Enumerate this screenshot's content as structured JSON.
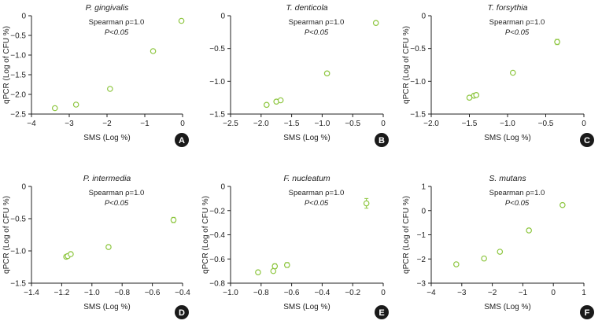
{
  "colors": {
    "point": "#8dc63f",
    "axis": "#222222",
    "badge": "#1a1a1a"
  },
  "chart_data": [
    {
      "type": "scatter",
      "panel": "A",
      "title": "P. gingivalis",
      "xlabel": "SMS (Log %)",
      "ylabel": "qPCR (Log of CFU %)",
      "annotation": [
        "Spearman ρ=1.0",
        "P<0.05"
      ],
      "xlim": [
        -4,
        0
      ],
      "ylim": [
        -2.5,
        0
      ],
      "xticks": [
        -4,
        -3,
        -2,
        -1,
        0
      ],
      "yticks": [
        -2.5,
        -2.0,
        -1.5,
        -1.0,
        -0.5,
        0
      ],
      "xtick_labels": [
        "−4",
        "−3",
        "−2",
        "−1",
        "0"
      ],
      "ytick_labels": [
        "−2.5",
        "−2.0",
        "−1.5",
        "−1.0",
        "−0.5",
        "0"
      ],
      "points": [
        {
          "x": -3.38,
          "y": -2.35
        },
        {
          "x": -2.82,
          "y": -2.26
        },
        {
          "x": -1.92,
          "y": -1.86
        },
        {
          "x": -0.78,
          "y": -0.9
        },
        {
          "x": -0.03,
          "y": -0.13
        }
      ]
    },
    {
      "type": "scatter",
      "panel": "B",
      "title": "T. denticola",
      "xlabel": "SMS (Log %)",
      "ylabel": "",
      "annotation": [
        "Spearman ρ=1.0",
        "P<0.05"
      ],
      "xlim": [
        -2.5,
        0
      ],
      "ylim": [
        -1.5,
        0
      ],
      "xticks": [
        -2.5,
        -2.0,
        -1.5,
        -1.0,
        -0.5,
        0
      ],
      "yticks": [
        -1.5,
        -1.0,
        -0.5,
        0
      ],
      "xtick_labels": [
        "−2.5",
        "−2.0",
        "−1.5",
        "−1.0",
        "−0.5",
        "0"
      ],
      "ytick_labels": [
        "−1.5",
        "−1.0",
        "−0.5",
        "0"
      ],
      "points": [
        {
          "x": -1.91,
          "y": -1.36
        },
        {
          "x": -1.75,
          "y": -1.31
        },
        {
          "x": -1.68,
          "y": -1.29
        },
        {
          "x": -0.92,
          "y": -0.88
        },
        {
          "x": -0.12,
          "y": -0.11
        }
      ]
    },
    {
      "type": "scatter",
      "panel": "C",
      "title": "T. forsythia",
      "xlabel": "SMS (Log %)",
      "ylabel": "qPCR (Log of CFU %)",
      "annotation": [
        "Spearman ρ=1.0",
        "P<0.05"
      ],
      "xlim": [
        -2.0,
        0
      ],
      "ylim": [
        -1.5,
        0
      ],
      "xticks": [
        -2.0,
        -1.5,
        -1.0,
        -0.5,
        0
      ],
      "yticks": [
        -1.5,
        -1.0,
        -0.5,
        0
      ],
      "xtick_labels": [
        "−2.0",
        "−1.5",
        "−1.0",
        "−0.5",
        "0"
      ],
      "ytick_labels": [
        "−1.5",
        "−1.0",
        "−0.5",
        "0"
      ],
      "points": [
        {
          "x": -1.5,
          "y": -1.25
        },
        {
          "x": -1.44,
          "y": -1.22
        },
        {
          "x": -1.41,
          "y": -1.21
        },
        {
          "x": -0.93,
          "y": -0.87
        },
        {
          "x": -0.35,
          "y": -0.4,
          "err": 0.04
        }
      ]
    },
    {
      "type": "scatter",
      "panel": "D",
      "title": "P. intermedia",
      "xlabel": "SMS (Log %)",
      "ylabel": "qPCR (Log of CFU %)",
      "annotation": [
        "Spearman ρ=1.0",
        "P<0.05"
      ],
      "xlim": [
        -1.4,
        -0.4
      ],
      "ylim": [
        -1.5,
        0
      ],
      "xticks": [
        -1.4,
        -1.2,
        -1.0,
        -0.8,
        -0.6,
        -0.4
      ],
      "yticks": [
        -1.5,
        -1.0,
        -0.5,
        0
      ],
      "xtick_labels": [
        "−1.4",
        "−1.2",
        "−1.0",
        "−0.8",
        "−0.6",
        "−0.4"
      ],
      "ytick_labels": [
        "−1.5",
        "−1.0",
        "−0.5",
        "0"
      ],
      "points": [
        {
          "x": -1.17,
          "y": -1.09
        },
        {
          "x": -1.16,
          "y": -1.08
        },
        {
          "x": -1.14,
          "y": -1.05
        },
        {
          "x": -0.89,
          "y": -0.94
        },
        {
          "x": -0.46,
          "y": -0.52,
          "err": 0.04
        }
      ]
    },
    {
      "type": "scatter",
      "panel": "E",
      "title": "F. nucleatum",
      "xlabel": "SMS (Log %)",
      "ylabel": "qPCR (Log of CFU %)",
      "annotation": [
        "Spearman ρ=1.0",
        "P<0.05"
      ],
      "xlim": [
        -1.0,
        0
      ],
      "ylim": [
        -0.8,
        0
      ],
      "xticks": [
        -1.0,
        -0.8,
        -0.6,
        -0.4,
        -0.2,
        0
      ],
      "yticks": [
        -0.8,
        -0.6,
        -0.4,
        -0.2,
        0
      ],
      "xtick_labels": [
        "−1.0",
        "−0.8",
        "−0.6",
        "−0.4",
        "−0.2",
        "0"
      ],
      "ytick_labels": [
        "−0.8",
        "−0.6",
        "−0.4",
        "−0.2",
        "0"
      ],
      "points": [
        {
          "x": -0.82,
          "y": -0.71
        },
        {
          "x": -0.72,
          "y": -0.7
        },
        {
          "x": -0.71,
          "y": -0.66,
          "err": 0.02
        },
        {
          "x": -0.63,
          "y": -0.65,
          "err": 0.02
        },
        {
          "x": -0.11,
          "y": -0.14,
          "err": 0.04
        }
      ]
    },
    {
      "type": "scatter",
      "panel": "F",
      "title": "S. mutans",
      "xlabel": "SMS (Log %)",
      "ylabel": "qPCR (Log of CFU %)",
      "annotation": [
        "Spearman ρ=1.0",
        "P<0.05"
      ],
      "xlim": [
        -4,
        1
      ],
      "ylim": [
        -3,
        1
      ],
      "xticks": [
        -4,
        -3,
        -2,
        -1,
        0,
        1
      ],
      "yticks": [
        -3,
        -2,
        -1,
        0,
        1
      ],
      "xtick_labels": [
        "−4",
        "−3",
        "−2",
        "−1",
        "0",
        "1"
      ],
      "ytick_labels": [
        "−3",
        "−2",
        "−1",
        "0",
        "1"
      ],
      "points": [
        {
          "x": -3.18,
          "y": -2.22
        },
        {
          "x": -2.27,
          "y": -1.98
        },
        {
          "x": -1.75,
          "y": -1.7
        },
        {
          "x": -0.8,
          "y": -0.82
        },
        {
          "x": 0.3,
          "y": 0.23
        }
      ]
    }
  ]
}
